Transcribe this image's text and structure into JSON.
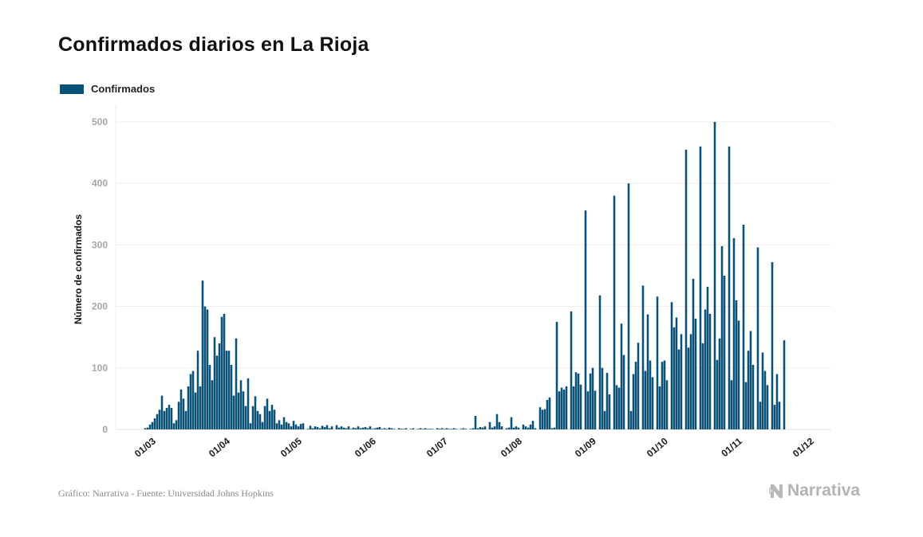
{
  "chart_data": {
    "type": "bar",
    "title": "Confirmados diarios en La Rioja",
    "ylabel": "Número de confirmados",
    "xlabel": "",
    "ylim": [
      0,
      500
    ],
    "yticks": [
      0,
      100,
      200,
      300,
      400,
      500
    ],
    "xtick_labels": [
      "01/03",
      "01/04",
      "01/05",
      "01/06",
      "01/07",
      "01/08",
      "01/09",
      "01/10",
      "01/11",
      "01/12"
    ],
    "grid": true,
    "legend_position": "top-left",
    "color": "#0a5178",
    "series": [
      {
        "name": "Confirmados",
        "points": [
          [
            1,
            2
          ],
          [
            2,
            3
          ],
          [
            3,
            8
          ],
          [
            4,
            12
          ],
          [
            5,
            18
          ],
          [
            6,
            25
          ],
          [
            7,
            32
          ],
          [
            8,
            55
          ],
          [
            9,
            30
          ],
          [
            10,
            35
          ],
          [
            11,
            40
          ],
          [
            12,
            35
          ],
          [
            13,
            10
          ],
          [
            14,
            15
          ],
          [
            15,
            45
          ],
          [
            16,
            65
          ],
          [
            17,
            50
          ],
          [
            18,
            30
          ],
          [
            19,
            70
          ],
          [
            20,
            90
          ],
          [
            21,
            95
          ],
          [
            22,
            60
          ],
          [
            23,
            128
          ],
          [
            24,
            70
          ],
          [
            25,
            242
          ],
          [
            26,
            200
          ],
          [
            27,
            195
          ],
          [
            28,
            105
          ],
          [
            29,
            80
          ],
          [
            30,
            150
          ],
          [
            31,
            120
          ],
          [
            32,
            140
          ],
          [
            33,
            183
          ],
          [
            34,
            188
          ],
          [
            35,
            128
          ],
          [
            36,
            128
          ],
          [
            37,
            105
          ],
          [
            38,
            55
          ],
          [
            39,
            148
          ],
          [
            40,
            60
          ],
          [
            41,
            80
          ],
          [
            42,
            62
          ],
          [
            43,
            38
          ],
          [
            44,
            83
          ],
          [
            45,
            10
          ],
          [
            46,
            38
          ],
          [
            47,
            54
          ],
          [
            48,
            30
          ],
          [
            49,
            25
          ],
          [
            50,
            12
          ],
          [
            51,
            38
          ],
          [
            52,
            50
          ],
          [
            53,
            30
          ],
          [
            54,
            40
          ],
          [
            55,
            32
          ],
          [
            56,
            10
          ],
          [
            57,
            15
          ],
          [
            58,
            8
          ],
          [
            59,
            20
          ],
          [
            60,
            12
          ],
          [
            61,
            10
          ],
          [
            62,
            5
          ],
          [
            63,
            14
          ],
          [
            64,
            8
          ],
          [
            65,
            5
          ],
          [
            66,
            9
          ],
          [
            67,
            10
          ],
          [
            69,
            1
          ],
          [
            70,
            6
          ],
          [
            71,
            2
          ],
          [
            72,
            5
          ],
          [
            73,
            4
          ],
          [
            74,
            2
          ],
          [
            75,
            6
          ],
          [
            76,
            4
          ],
          [
            77,
            7
          ],
          [
            78,
            2
          ],
          [
            79,
            5
          ],
          [
            81,
            7
          ],
          [
            82,
            3
          ],
          [
            83,
            5
          ],
          [
            84,
            3
          ],
          [
            85,
            2
          ],
          [
            86,
            5
          ],
          [
            87,
            1
          ],
          [
            88,
            3
          ],
          [
            89,
            2
          ],
          [
            90,
            5
          ],
          [
            91,
            2
          ],
          [
            92,
            3
          ],
          [
            93,
            4
          ],
          [
            94,
            2
          ],
          [
            95,
            5
          ],
          [
            96,
            1
          ],
          [
            97,
            2
          ],
          [
            98,
            3
          ],
          [
            99,
            4
          ],
          [
            100,
            1
          ],
          [
            101,
            2
          ],
          [
            102,
            1
          ],
          [
            103,
            3
          ],
          [
            104,
            2
          ],
          [
            105,
            1
          ],
          [
            107,
            2
          ],
          [
            108,
            1
          ],
          [
            109,
            1
          ],
          [
            110,
            2
          ],
          [
            112,
            1
          ],
          [
            113,
            2
          ],
          [
            115,
            1
          ],
          [
            116,
            2
          ],
          [
            117,
            1
          ],
          [
            118,
            2
          ],
          [
            119,
            1
          ],
          [
            120,
            1
          ],
          [
            121,
            1
          ],
          [
            123,
            2
          ],
          [
            124,
            1
          ],
          [
            125,
            2
          ],
          [
            126,
            1
          ],
          [
            127,
            2
          ],
          [
            128,
            1
          ],
          [
            129,
            1
          ],
          [
            130,
            2
          ],
          [
            131,
            1
          ],
          [
            133,
            1
          ],
          [
            134,
            2
          ],
          [
            135,
            1
          ],
          [
            137,
            1
          ],
          [
            138,
            2
          ],
          [
            139,
            22
          ],
          [
            140,
            2
          ],
          [
            141,
            4
          ],
          [
            142,
            3
          ],
          [
            143,
            5
          ],
          [
            145,
            12
          ],
          [
            146,
            3
          ],
          [
            147,
            5
          ],
          [
            148,
            25
          ],
          [
            149,
            12
          ],
          [
            150,
            5
          ],
          [
            152,
            2
          ],
          [
            153,
            3
          ],
          [
            154,
            20
          ],
          [
            155,
            3
          ],
          [
            156,
            5
          ],
          [
            157,
            3
          ],
          [
            159,
            8
          ],
          [
            160,
            5
          ],
          [
            161,
            3
          ],
          [
            162,
            8
          ],
          [
            163,
            14
          ],
          [
            164,
            2
          ],
          [
            166,
            36
          ],
          [
            167,
            32
          ],
          [
            168,
            33
          ],
          [
            169,
            48
          ],
          [
            170,
            52
          ],
          [
            171,
            2
          ],
          [
            172,
            3
          ],
          [
            173,
            175
          ],
          [
            174,
            62
          ],
          [
            175,
            68
          ],
          [
            176,
            65
          ],
          [
            177,
            70
          ],
          [
            179,
            192
          ],
          [
            180,
            70
          ],
          [
            181,
            93
          ],
          [
            182,
            91
          ],
          [
            183,
            73
          ],
          [
            185,
            356
          ],
          [
            186,
            62
          ],
          [
            187,
            91
          ],
          [
            188,
            100
          ],
          [
            189,
            63
          ],
          [
            191,
            218
          ],
          [
            192,
            100
          ],
          [
            193,
            30
          ],
          [
            194,
            92
          ],
          [
            195,
            57
          ],
          [
            197,
            380
          ],
          [
            198,
            72
          ],
          [
            199,
            68
          ],
          [
            200,
            172
          ],
          [
            201,
            121
          ],
          [
            203,
            400
          ],
          [
            204,
            30
          ],
          [
            205,
            90
          ],
          [
            206,
            110
          ],
          [
            207,
            141
          ],
          [
            209,
            234
          ],
          [
            210,
            95
          ],
          [
            211,
            187
          ],
          [
            212,
            112
          ],
          [
            213,
            85
          ],
          [
            215,
            216
          ],
          [
            216,
            70
          ],
          [
            217,
            110
          ],
          [
            218,
            112
          ],
          [
            219,
            80
          ],
          [
            221,
            207
          ],
          [
            222,
            166
          ],
          [
            223,
            182
          ],
          [
            224,
            130
          ],
          [
            225,
            155
          ],
          [
            227,
            455
          ],
          [
            228,
            133
          ],
          [
            229,
            155
          ],
          [
            230,
            245
          ],
          [
            231,
            180
          ],
          [
            233,
            460
          ],
          [
            234,
            140
          ],
          [
            235,
            195
          ],
          [
            236,
            232
          ],
          [
            237,
            188
          ],
          [
            239,
            500
          ],
          [
            240,
            113
          ],
          [
            241,
            148
          ],
          [
            242,
            298
          ],
          [
            243,
            250
          ],
          [
            245,
            460
          ],
          [
            246,
            80
          ],
          [
            247,
            311
          ],
          [
            248,
            210
          ],
          [
            249,
            177
          ],
          [
            251,
            333
          ],
          [
            252,
            77
          ],
          [
            253,
            128
          ],
          [
            254,
            160
          ],
          [
            255,
            105
          ],
          [
            257,
            296
          ],
          [
            258,
            45
          ],
          [
            259,
            125
          ],
          [
            260,
            95
          ],
          [
            261,
            72
          ],
          [
            263,
            272
          ],
          [
            264,
            40
          ],
          [
            265,
            90
          ],
          [
            266,
            45
          ],
          [
            268,
            145
          ]
        ]
      }
    ]
  },
  "legend": {
    "label": "Confirmados",
    "color": "#0a5178"
  },
  "footer": {
    "source": "Gráfico: Narrativa - Fuente: Universidad Johns Hopkins",
    "brand": "Narrativa"
  }
}
